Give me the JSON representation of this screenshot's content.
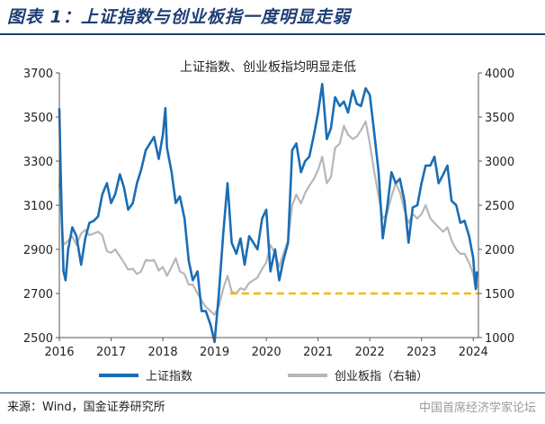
{
  "figure_title": "图表 1：上证指数与创业板指一度明显走弱",
  "source_note": "来源：Wind，国金证券研究所",
  "watermark": "中国首席经济学家论坛",
  "chart_data": {
    "type": "line",
    "title": "上证指数、创业板指均明显走低",
    "x_ticks": [
      "2016",
      "2017",
      "2018",
      "2019",
      "2020",
      "2021",
      "2022",
      "2023",
      "2024"
    ],
    "xlim": [
      2016.0,
      2024.1
    ],
    "left_axis": {
      "ticks": [
        2500,
        2700,
        2900,
        3100,
        3300,
        3500,
        3700
      ],
      "ylim": [
        2500,
        3700
      ]
    },
    "right_axis": {
      "ticks": [
        1000,
        1500,
        2000,
        2500,
        3000,
        3500,
        4000
      ],
      "ylim": [
        1000,
        4000
      ]
    },
    "grid": false,
    "legend_position": "bottom",
    "series": [
      {
        "name": "上证指数",
        "axis": "left",
        "color": "#1a6db5",
        "points": [
          [
            2016.0,
            3540
          ],
          [
            2016.02,
            3300
          ],
          [
            2016.05,
            3020
          ],
          [
            2016.08,
            2800
          ],
          [
            2016.12,
            2760
          ],
          [
            2016.17,
            2900
          ],
          [
            2016.25,
            3000
          ],
          [
            2016.33,
            2960
          ],
          [
            2016.42,
            2830
          ],
          [
            2016.5,
            2950
          ],
          [
            2016.58,
            3020
          ],
          [
            2016.67,
            3030
          ],
          [
            2016.75,
            3050
          ],
          [
            2016.83,
            3150
          ],
          [
            2016.92,
            3200
          ],
          [
            2017.0,
            3110
          ],
          [
            2017.08,
            3150
          ],
          [
            2017.17,
            3240
          ],
          [
            2017.25,
            3180
          ],
          [
            2017.33,
            3080
          ],
          [
            2017.42,
            3110
          ],
          [
            2017.5,
            3200
          ],
          [
            2017.58,
            3260
          ],
          [
            2017.67,
            3350
          ],
          [
            2017.75,
            3380
          ],
          [
            2017.83,
            3410
          ],
          [
            2017.92,
            3310
          ],
          [
            2018.0,
            3420
          ],
          [
            2018.05,
            3540
          ],
          [
            2018.08,
            3360
          ],
          [
            2018.17,
            3250
          ],
          [
            2018.25,
            3110
          ],
          [
            2018.33,
            3140
          ],
          [
            2018.42,
            3040
          ],
          [
            2018.5,
            2850
          ],
          [
            2018.58,
            2760
          ],
          [
            2018.67,
            2800
          ],
          [
            2018.75,
            2620
          ],
          [
            2018.83,
            2620
          ],
          [
            2018.92,
            2560
          ],
          [
            2019.0,
            2480
          ],
          [
            2019.08,
            2690
          ],
          [
            2019.17,
            2980
          ],
          [
            2019.25,
            3200
          ],
          [
            2019.33,
            2930
          ],
          [
            2019.42,
            2880
          ],
          [
            2019.5,
            2950
          ],
          [
            2019.58,
            2830
          ],
          [
            2019.67,
            2960
          ],
          [
            2019.75,
            2930
          ],
          [
            2019.83,
            2900
          ],
          [
            2019.92,
            3040
          ],
          [
            2020.0,
            3080
          ],
          [
            2020.08,
            2800
          ],
          [
            2020.17,
            2900
          ],
          [
            2020.25,
            2760
          ],
          [
            2020.33,
            2850
          ],
          [
            2020.42,
            2930
          ],
          [
            2020.5,
            3350
          ],
          [
            2020.58,
            3380
          ],
          [
            2020.67,
            3250
          ],
          [
            2020.75,
            3300
          ],
          [
            2020.83,
            3320
          ],
          [
            2020.92,
            3420
          ],
          [
            2021.0,
            3520
          ],
          [
            2021.08,
            3650
          ],
          [
            2021.17,
            3400
          ],
          [
            2021.25,
            3450
          ],
          [
            2021.33,
            3590
          ],
          [
            2021.42,
            3550
          ],
          [
            2021.5,
            3570
          ],
          [
            2021.58,
            3520
          ],
          [
            2021.67,
            3620
          ],
          [
            2021.75,
            3560
          ],
          [
            2021.83,
            3550
          ],
          [
            2021.92,
            3630
          ],
          [
            2022.0,
            3600
          ],
          [
            2022.08,
            3440
          ],
          [
            2022.17,
            3250
          ],
          [
            2022.25,
            2950
          ],
          [
            2022.33,
            3080
          ],
          [
            2022.42,
            3250
          ],
          [
            2022.5,
            3200
          ],
          [
            2022.58,
            3220
          ],
          [
            2022.67,
            3120
          ],
          [
            2022.75,
            2930
          ],
          [
            2022.83,
            3090
          ],
          [
            2022.92,
            3100
          ],
          [
            2023.0,
            3200
          ],
          [
            2023.08,
            3280
          ],
          [
            2023.17,
            3280
          ],
          [
            2023.25,
            3320
          ],
          [
            2023.33,
            3200
          ],
          [
            2023.42,
            3240
          ],
          [
            2023.5,
            3280
          ],
          [
            2023.58,
            3120
          ],
          [
            2023.67,
            3100
          ],
          [
            2023.75,
            3020
          ],
          [
            2023.83,
            3030
          ],
          [
            2023.92,
            2960
          ],
          [
            2024.0,
            2860
          ],
          [
            2024.03,
            2760
          ],
          [
            2024.05,
            2720
          ],
          [
            2024.07,
            2800
          ]
        ]
      },
      {
        "name": "创业板指（右轴）",
        "axis": "right",
        "color": "#b7b7b7",
        "points": [
          [
            2016.0,
            2750
          ],
          [
            2016.03,
            2450
          ],
          [
            2016.08,
            2050
          ],
          [
            2016.17,
            2100
          ],
          [
            2016.25,
            2150
          ],
          [
            2016.33,
            2050
          ],
          [
            2016.42,
            2180
          ],
          [
            2016.5,
            2220
          ],
          [
            2016.58,
            2160
          ],
          [
            2016.67,
            2180
          ],
          [
            2016.75,
            2200
          ],
          [
            2016.83,
            2160
          ],
          [
            2016.92,
            1980
          ],
          [
            2017.0,
            1960
          ],
          [
            2017.08,
            2000
          ],
          [
            2017.17,
            1920
          ],
          [
            2017.25,
            1850
          ],
          [
            2017.33,
            1770
          ],
          [
            2017.42,
            1780
          ],
          [
            2017.5,
            1720
          ],
          [
            2017.58,
            1750
          ],
          [
            2017.67,
            1880
          ],
          [
            2017.75,
            1870
          ],
          [
            2017.83,
            1880
          ],
          [
            2017.92,
            1760
          ],
          [
            2018.0,
            1800
          ],
          [
            2018.08,
            1700
          ],
          [
            2018.17,
            1800
          ],
          [
            2018.25,
            1900
          ],
          [
            2018.33,
            1750
          ],
          [
            2018.42,
            1720
          ],
          [
            2018.5,
            1600
          ],
          [
            2018.58,
            1600
          ],
          [
            2018.67,
            1500
          ],
          [
            2018.75,
            1420
          ],
          [
            2018.83,
            1350
          ],
          [
            2018.92,
            1300
          ],
          [
            2019.0,
            1260
          ],
          [
            2019.08,
            1350
          ],
          [
            2019.17,
            1560
          ],
          [
            2019.25,
            1700
          ],
          [
            2019.33,
            1520
          ],
          [
            2019.42,
            1500
          ],
          [
            2019.5,
            1560
          ],
          [
            2019.58,
            1540
          ],
          [
            2019.67,
            1620
          ],
          [
            2019.75,
            1650
          ],
          [
            2019.83,
            1680
          ],
          [
            2019.92,
            1780
          ],
          [
            2020.0,
            1850
          ],
          [
            2020.08,
            2050
          ],
          [
            2020.17,
            1950
          ],
          [
            2020.25,
            1800
          ],
          [
            2020.33,
            1950
          ],
          [
            2020.42,
            2100
          ],
          [
            2020.5,
            2500
          ],
          [
            2020.58,
            2620
          ],
          [
            2020.67,
            2520
          ],
          [
            2020.75,
            2640
          ],
          [
            2020.83,
            2720
          ],
          [
            2020.92,
            2800
          ],
          [
            2021.0,
            2900
          ],
          [
            2021.08,
            3050
          ],
          [
            2021.17,
            2750
          ],
          [
            2021.25,
            2820
          ],
          [
            2021.33,
            3150
          ],
          [
            2021.42,
            3200
          ],
          [
            2021.5,
            3400
          ],
          [
            2021.58,
            3300
          ],
          [
            2021.67,
            3250
          ],
          [
            2021.75,
            3280
          ],
          [
            2021.83,
            3350
          ],
          [
            2021.92,
            3450
          ],
          [
            2022.0,
            3200
          ],
          [
            2022.08,
            2900
          ],
          [
            2022.17,
            2600
          ],
          [
            2022.25,
            2350
          ],
          [
            2022.33,
            2400
          ],
          [
            2022.42,
            2600
          ],
          [
            2022.5,
            2750
          ],
          [
            2022.58,
            2650
          ],
          [
            2022.67,
            2450
          ],
          [
            2022.75,
            2300
          ],
          [
            2022.83,
            2400
          ],
          [
            2022.92,
            2350
          ],
          [
            2023.0,
            2400
          ],
          [
            2023.08,
            2500
          ],
          [
            2023.17,
            2350
          ],
          [
            2023.25,
            2300
          ],
          [
            2023.33,
            2250
          ],
          [
            2023.42,
            2200
          ],
          [
            2023.5,
            2250
          ],
          [
            2023.58,
            2100
          ],
          [
            2023.67,
            2000
          ],
          [
            2023.75,
            1950
          ],
          [
            2023.83,
            1950
          ],
          [
            2023.92,
            1850
          ],
          [
            2024.0,
            1720
          ],
          [
            2024.05,
            1550
          ],
          [
            2024.08,
            1600
          ]
        ]
      }
    ],
    "reference_line": {
      "axis": "right",
      "y": 1500,
      "x_start": 2019.3,
      "x_end": 2024.1,
      "color": "#f5b800",
      "style": "dashed"
    }
  }
}
